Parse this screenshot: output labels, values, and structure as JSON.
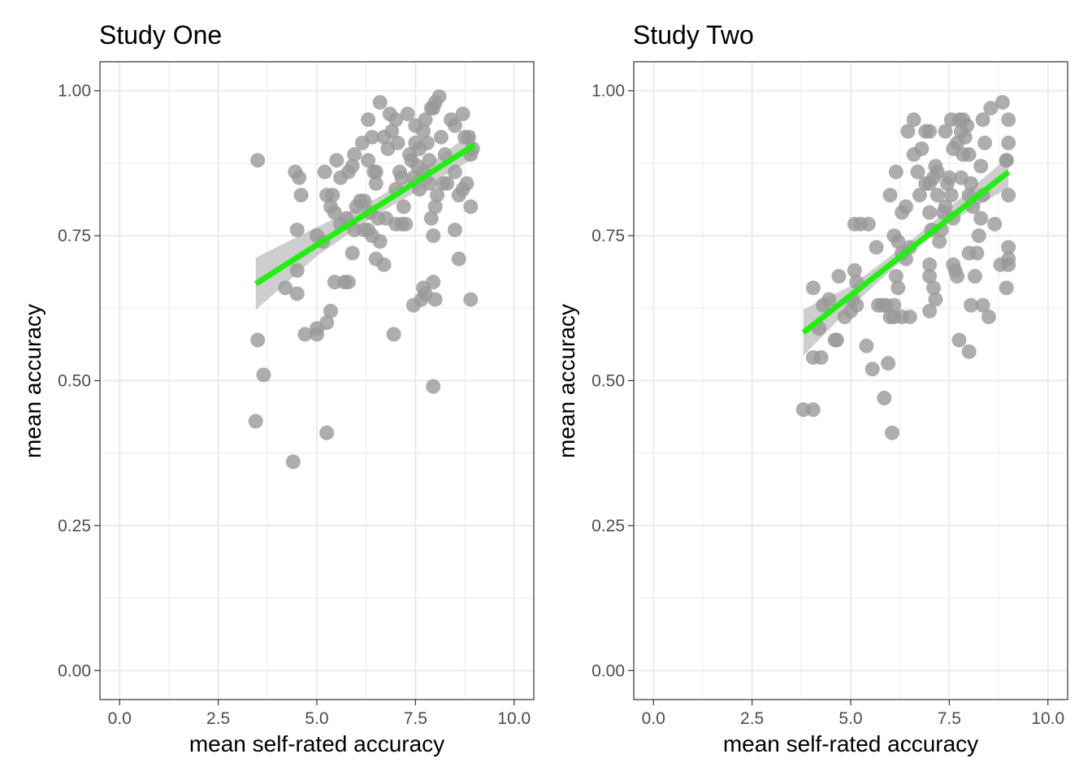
{
  "colors": {
    "point": "#999999",
    "fit_line": "#22ee11",
    "ribbon": "#bebebe",
    "grid": "#ebebeb",
    "panel_border": "#333333"
  },
  "chart_data": [
    {
      "type": "scatter",
      "title": "Study One",
      "xlabel": "mean self-rated accuracy",
      "ylabel": "mean accuracy",
      "xlim": [
        -0.5,
        10.5
      ],
      "ylim": [
        -0.05,
        1.05
      ],
      "x_ticks": [
        "0.0",
        "2.5",
        "5.0",
        "7.5",
        "10.0"
      ],
      "y_ticks": [
        "0.00",
        "0.25",
        "0.50",
        "0.75",
        "1.00"
      ],
      "grid": true,
      "fit": {
        "x": [
          3.45,
          9.0
        ],
        "y": [
          0.667,
          0.907
        ],
        "ci": [
          [
            3.45,
            0.622,
            0.712
          ],
          [
            5.0,
            0.715,
            0.765
          ],
          [
            6.5,
            0.786,
            0.814
          ],
          [
            7.5,
            0.825,
            0.855
          ],
          [
            9.0,
            0.884,
            0.932
          ]
        ]
      },
      "points": [
        [
          3.5,
          0.88
        ],
        [
          3.5,
          0.57
        ],
        [
          3.65,
          0.51
        ],
        [
          3.45,
          0.43
        ],
        [
          4.4,
          0.36
        ],
        [
          4.45,
          0.86
        ],
        [
          4.55,
          0.85
        ],
        [
          4.6,
          0.82
        ],
        [
          4.5,
          0.76
        ],
        [
          4.5,
          0.69
        ],
        [
          4.5,
          0.65
        ],
        [
          4.2,
          0.66
        ],
        [
          4.7,
          0.58
        ],
        [
          5.0,
          0.58
        ],
        [
          5.0,
          0.59
        ],
        [
          5.25,
          0.6
        ],
        [
          5.35,
          0.62
        ],
        [
          5.25,
          0.41
        ],
        [
          5.0,
          0.75
        ],
        [
          5.15,
          0.74
        ],
        [
          5.2,
          0.86
        ],
        [
          5.25,
          0.82
        ],
        [
          5.35,
          0.8
        ],
        [
          5.4,
          0.82
        ],
        [
          5.45,
          0.79
        ],
        [
          5.5,
          0.88
        ],
        [
          5.6,
          0.85
        ],
        [
          5.45,
          0.67
        ],
        [
          5.7,
          0.67
        ],
        [
          5.8,
          0.67
        ],
        [
          5.9,
          0.72
        ],
        [
          5.8,
          0.86
        ],
        [
          5.9,
          0.87
        ],
        [
          5.95,
          0.89
        ],
        [
          6.0,
          0.8
        ],
        [
          6.1,
          0.81
        ],
        [
          6.2,
          0.81
        ],
        [
          6.15,
          0.91
        ],
        [
          6.3,
          0.88
        ],
        [
          6.3,
          0.95
        ],
        [
          6.4,
          0.92
        ],
        [
          6.45,
          0.86
        ],
        [
          6.5,
          0.86
        ],
        [
          6.5,
          0.84
        ],
        [
          6.55,
          0.78
        ],
        [
          6.6,
          0.74
        ],
        [
          6.5,
          0.71
        ],
        [
          6.7,
          0.7
        ],
        [
          6.6,
          0.98
        ],
        [
          6.7,
          0.92
        ],
        [
          6.8,
          0.9
        ],
        [
          6.85,
          0.96
        ],
        [
          6.9,
          0.93
        ],
        [
          7.0,
          0.95
        ],
        [
          7.05,
          0.91
        ],
        [
          7.0,
          0.83
        ],
        [
          7.1,
          0.86
        ],
        [
          7.15,
          0.85
        ],
        [
          7.2,
          0.8
        ],
        [
          7.15,
          0.77
        ],
        [
          7.25,
          0.77
        ],
        [
          7.0,
          0.77
        ],
        [
          6.95,
          0.58
        ],
        [
          7.3,
          0.96
        ],
        [
          7.35,
          0.89
        ],
        [
          7.4,
          0.88
        ],
        [
          7.45,
          0.85
        ],
        [
          7.5,
          0.94
        ],
        [
          7.5,
          0.91
        ],
        [
          7.55,
          0.87
        ],
        [
          7.6,
          0.83
        ],
        [
          7.6,
          0.9
        ],
        [
          7.7,
          0.86
        ],
        [
          7.7,
          0.93
        ],
        [
          7.75,
          0.95
        ],
        [
          7.8,
          0.91
        ],
        [
          7.85,
          0.88
        ],
        [
          7.85,
          0.84
        ],
        [
          7.9,
          0.97
        ],
        [
          7.95,
          0.97
        ],
        [
          8.0,
          0.98
        ],
        [
          8.0,
          0.8
        ],
        [
          7.9,
          0.78
        ],
        [
          8.05,
          0.82
        ],
        [
          8.1,
          0.99
        ],
        [
          8.15,
          0.92
        ],
        [
          8.2,
          0.84
        ],
        [
          8.25,
          0.89
        ],
        [
          8.3,
          0.84
        ],
        [
          8.4,
          0.95
        ],
        [
          8.5,
          0.94
        ],
        [
          8.5,
          0.86
        ],
        [
          8.6,
          0.82
        ],
        [
          8.7,
          0.83
        ],
        [
          8.7,
          0.96
        ],
        [
          8.75,
          0.92
        ],
        [
          8.8,
          0.84
        ],
        [
          8.85,
          0.92
        ],
        [
          8.9,
          0.89
        ],
        [
          8.95,
          0.9
        ],
        [
          8.9,
          0.8
        ],
        [
          8.9,
          0.64
        ],
        [
          8.6,
          0.71
        ],
        [
          8.5,
          0.76
        ],
        [
          7.95,
          0.75
        ],
        [
          7.7,
          0.66
        ],
        [
          7.75,
          0.65
        ],
        [
          7.65,
          0.64
        ],
        [
          7.95,
          0.67
        ],
        [
          8.0,
          0.64
        ],
        [
          7.45,
          0.63
        ],
        [
          7.95,
          0.49
        ],
        [
          5.6,
          0.77
        ],
        [
          5.75,
          0.78
        ],
        [
          6.2,
          0.76
        ],
        [
          6.3,
          0.76
        ],
        [
          6.4,
          0.75
        ],
        [
          6.35,
          0.79
        ],
        [
          5.95,
          0.76
        ],
        [
          6.75,
          0.78
        ]
      ]
    },
    {
      "type": "scatter",
      "title": "Study Two",
      "xlabel": "mean self-rated accuracy",
      "ylabel": "mean accuracy",
      "xlim": [
        -0.5,
        10.5
      ],
      "ylim": [
        -0.05,
        1.05
      ],
      "x_ticks": [
        "0.0",
        "2.5",
        "5.0",
        "7.5",
        "10.0"
      ],
      "y_ticks": [
        "0.00",
        "0.25",
        "0.50",
        "0.75",
        "1.00"
      ],
      "grid": true,
      "fit": {
        "x": [
          3.8,
          9.0
        ],
        "y": [
          0.583,
          0.86
        ],
        "ci": [
          [
            3.8,
            0.543,
            0.623
          ],
          [
            5.0,
            0.627,
            0.663
          ],
          [
            6.5,
            0.72,
            0.74
          ],
          [
            7.5,
            0.772,
            0.798
          ],
          [
            9.0,
            0.833,
            0.887
          ]
        ]
      },
      "points": [
        [
          3.8,
          0.45
        ],
        [
          4.05,
          0.45
        ],
        [
          4.05,
          0.54
        ],
        [
          4.25,
          0.54
        ],
        [
          4.05,
          0.66
        ],
        [
          4.2,
          0.59
        ],
        [
          4.3,
          0.63
        ],
        [
          4.45,
          0.64
        ],
        [
          4.6,
          0.57
        ],
        [
          4.65,
          0.57
        ],
        [
          4.7,
          0.68
        ],
        [
          4.85,
          0.61
        ],
        [
          5.0,
          0.62
        ],
        [
          5.05,
          0.64
        ],
        [
          5.1,
          0.69
        ],
        [
          5.15,
          0.67
        ],
        [
          5.15,
          0.63
        ],
        [
          5.1,
          0.77
        ],
        [
          5.25,
          0.77
        ],
        [
          5.45,
          0.77
        ],
        [
          5.4,
          0.56
        ],
        [
          5.55,
          0.52
        ],
        [
          5.65,
          0.73
        ],
        [
          5.7,
          0.63
        ],
        [
          5.8,
          0.63
        ],
        [
          5.85,
          0.47
        ],
        [
          5.9,
          0.63
        ],
        [
          5.95,
          0.53
        ],
        [
          6.0,
          0.61
        ],
        [
          6.05,
          0.41
        ],
        [
          6.1,
          0.61
        ],
        [
          6.1,
          0.63
        ],
        [
          6.15,
          0.68
        ],
        [
          6.2,
          0.66
        ],
        [
          6.3,
          0.61
        ],
        [
          6.5,
          0.61
        ],
        [
          6.1,
          0.75
        ],
        [
          6.2,
          0.74
        ],
        [
          6.3,
          0.72
        ],
        [
          6.4,
          0.71
        ],
        [
          6.5,
          0.73
        ],
        [
          6.0,
          0.82
        ],
        [
          6.15,
          0.86
        ],
        [
          6.3,
          0.79
        ],
        [
          6.4,
          0.8
        ],
        [
          6.45,
          0.93
        ],
        [
          6.6,
          0.95
        ],
        [
          6.6,
          0.89
        ],
        [
          6.7,
          0.86
        ],
        [
          6.75,
          0.82
        ],
        [
          6.8,
          0.9
        ],
        [
          6.9,
          0.93
        ],
        [
          7.0,
          0.93
        ],
        [
          6.9,
          0.84
        ],
        [
          7.0,
          0.84
        ],
        [
          7.1,
          0.85
        ],
        [
          7.15,
          0.87
        ],
        [
          7.2,
          0.86
        ],
        [
          7.2,
          0.82
        ],
        [
          7.0,
          0.79
        ],
        [
          7.05,
          0.76
        ],
        [
          7.0,
          0.7
        ],
        [
          7.0,
          0.68
        ],
        [
          7.1,
          0.66
        ],
        [
          7.15,
          0.64
        ],
        [
          7.0,
          0.62
        ],
        [
          7.25,
          0.74
        ],
        [
          7.3,
          0.76
        ],
        [
          7.35,
          0.79
        ],
        [
          7.4,
          0.8
        ],
        [
          7.45,
          0.84
        ],
        [
          7.5,
          0.85
        ],
        [
          7.55,
          0.82
        ],
        [
          7.6,
          0.78
        ],
        [
          7.6,
          0.7
        ],
        [
          7.7,
          0.68
        ],
        [
          7.75,
          0.57
        ],
        [
          7.4,
          0.93
        ],
        [
          7.55,
          0.95
        ],
        [
          7.6,
          0.9
        ],
        [
          7.7,
          0.91
        ],
        [
          7.75,
          0.95
        ],
        [
          7.8,
          0.93
        ],
        [
          7.8,
          0.85
        ],
        [
          7.85,
          0.89
        ],
        [
          7.9,
          0.92
        ],
        [
          7.95,
          0.94
        ],
        [
          8.0,
          0.89
        ],
        [
          8.0,
          0.82
        ],
        [
          8.05,
          0.84
        ],
        [
          8.1,
          0.8
        ],
        [
          8.0,
          0.72
        ],
        [
          8.0,
          0.55
        ],
        [
          8.05,
          0.63
        ],
        [
          8.15,
          0.68
        ],
        [
          8.2,
          0.72
        ],
        [
          8.25,
          0.75
        ],
        [
          8.3,
          0.78
        ],
        [
          8.35,
          0.95
        ],
        [
          8.4,
          0.91
        ],
        [
          8.3,
          0.87
        ],
        [
          8.35,
          0.82
        ],
        [
          8.35,
          0.63
        ],
        [
          8.5,
          0.61
        ],
        [
          8.55,
          0.97
        ],
        [
          8.65,
          0.77
        ],
        [
          8.8,
          0.7
        ],
        [
          8.85,
          0.98
        ],
        [
          8.95,
          0.88
        ],
        [
          9.0,
          0.95
        ],
        [
          9.0,
          0.91
        ],
        [
          9.0,
          0.82
        ],
        [
          9.0,
          0.73
        ],
        [
          9.0,
          0.71
        ],
        [
          9.0,
          0.7
        ],
        [
          8.95,
          0.66
        ],
        [
          8.95,
          0.88
        ],
        [
          7.85,
          0.95
        ],
        [
          7.65,
          0.69
        ]
      ]
    }
  ]
}
